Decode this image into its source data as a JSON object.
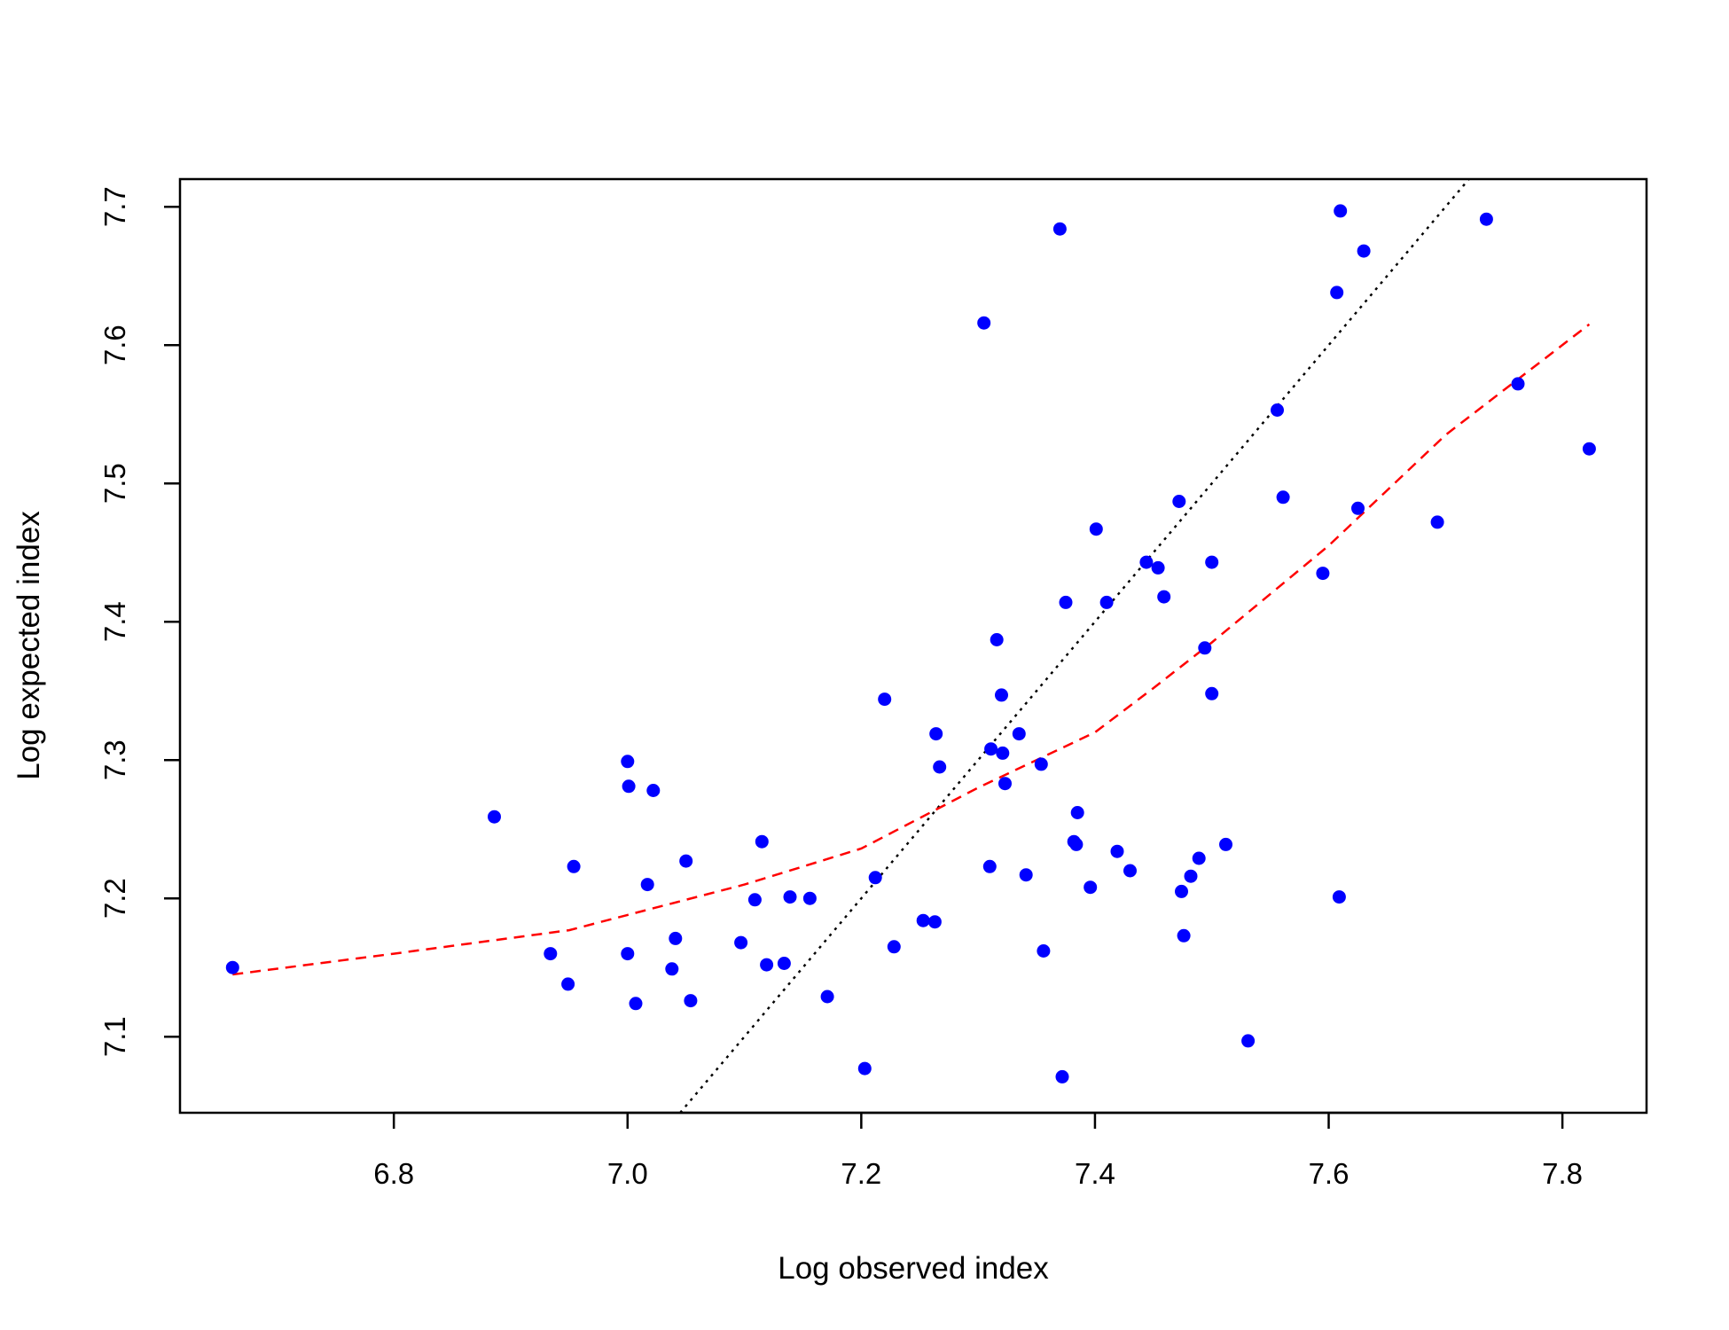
{
  "chart_data": {
    "type": "scatter",
    "xlabel": "Log observed index",
    "ylabel": "Log expected index",
    "xlim": [
      6.617,
      7.872
    ],
    "ylim": [
      7.045,
      7.72
    ],
    "xticks": [
      "6.8",
      "7.0",
      "7.2",
      "7.4",
      "7.6",
      "7.8"
    ],
    "yticks": [
      "7.1",
      "7.2",
      "7.3",
      "7.4",
      "7.5",
      "7.6",
      "7.7"
    ],
    "grid": false,
    "colors": {
      "points": "#0000ff",
      "smooth": "#ff0000",
      "identity": "#000000"
    },
    "points": [
      [
        6.662,
        7.15
      ],
      [
        6.886,
        7.259
      ],
      [
        6.934,
        7.16
      ],
      [
        6.949,
        7.138
      ],
      [
        6.954,
        7.223
      ],
      [
        7.0,
        7.299
      ],
      [
        7.001,
        7.281
      ],
      [
        7.0,
        7.16
      ],
      [
        7.007,
        7.124
      ],
      [
        7.017,
        7.21
      ],
      [
        7.022,
        7.278
      ],
      [
        7.038,
        7.149
      ],
      [
        7.041,
        7.171
      ],
      [
        7.05,
        7.227
      ],
      [
        7.054,
        7.126
      ],
      [
        7.097,
        7.168
      ],
      [
        7.109,
        7.199
      ],
      [
        7.115,
        7.241
      ],
      [
        7.119,
        7.152
      ],
      [
        7.134,
        7.153
      ],
      [
        7.139,
        7.201
      ],
      [
        7.156,
        7.2
      ],
      [
        7.171,
        7.129
      ],
      [
        7.203,
        7.077
      ],
      [
        7.212,
        7.215
      ],
      [
        7.22,
        7.344
      ],
      [
        7.228,
        7.165
      ],
      [
        7.253,
        7.184
      ],
      [
        7.263,
        7.183
      ],
      [
        7.264,
        7.319
      ],
      [
        7.267,
        7.295
      ],
      [
        7.305,
        7.616
      ],
      [
        7.31,
        7.223
      ],
      [
        7.311,
        7.308
      ],
      [
        7.316,
        7.387
      ],
      [
        7.32,
        7.347
      ],
      [
        7.321,
        7.305
      ],
      [
        7.323,
        7.283
      ],
      [
        7.335,
        7.319
      ],
      [
        7.341,
        7.217
      ],
      [
        7.354,
        7.297
      ],
      [
        7.356,
        7.162
      ],
      [
        7.37,
        7.684
      ],
      [
        7.372,
        7.071
      ],
      [
        7.375,
        7.414
      ],
      [
        7.382,
        7.241
      ],
      [
        7.384,
        7.239
      ],
      [
        7.385,
        7.262
      ],
      [
        7.396,
        7.208
      ],
      [
        7.401,
        7.467
      ],
      [
        7.41,
        7.414
      ],
      [
        7.419,
        7.234
      ],
      [
        7.43,
        7.22
      ],
      [
        7.444,
        7.443
      ],
      [
        7.454,
        7.439
      ],
      [
        7.459,
        7.418
      ],
      [
        7.472,
        7.487
      ],
      [
        7.474,
        7.205
      ],
      [
        7.476,
        7.173
      ],
      [
        7.482,
        7.216
      ],
      [
        7.489,
        7.229
      ],
      [
        7.494,
        7.381
      ],
      [
        7.5,
        7.443
      ],
      [
        7.5,
        7.348
      ],
      [
        7.512,
        7.239
      ],
      [
        7.531,
        7.097
      ],
      [
        7.556,
        7.553
      ],
      [
        7.561,
        7.49
      ],
      [
        7.595,
        7.435
      ],
      [
        7.607,
        7.638
      ],
      [
        7.609,
        7.201
      ],
      [
        7.61,
        7.697
      ],
      [
        7.625,
        7.482
      ],
      [
        7.63,
        7.668
      ],
      [
        7.693,
        7.472
      ],
      [
        7.735,
        7.691
      ],
      [
        7.762,
        7.572
      ],
      [
        7.823,
        7.525
      ]
    ],
    "smooth": [
      [
        6.662,
        7.145
      ],
      [
        6.8,
        7.16
      ],
      [
        6.95,
        7.177
      ],
      [
        7.0,
        7.188
      ],
      [
        7.1,
        7.21
      ],
      [
        7.2,
        7.236
      ],
      [
        7.25,
        7.258
      ],
      [
        7.3,
        7.28
      ],
      [
        7.35,
        7.3
      ],
      [
        7.4,
        7.32
      ],
      [
        7.45,
        7.352
      ],
      [
        7.5,
        7.385
      ],
      [
        7.6,
        7.455
      ],
      [
        7.7,
        7.535
      ],
      [
        7.823,
        7.615
      ]
    ],
    "identity": [
      [
        7.045,
        7.045
      ],
      [
        7.72,
        7.72
      ]
    ]
  }
}
